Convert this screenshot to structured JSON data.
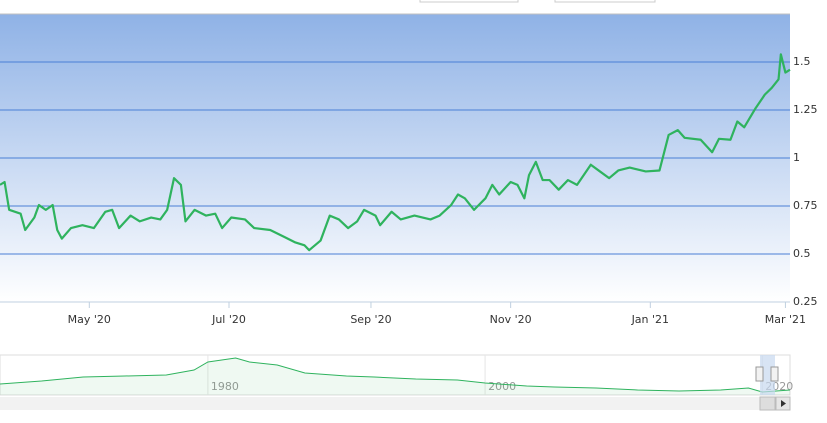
{
  "chart_data": {
    "type": "line",
    "color": "#2fb35e",
    "x": [
      "2020-03-23",
      "2020-03-25",
      "2020-03-27",
      "2020-04-01",
      "2020-04-03",
      "2020-04-07",
      "2020-04-09",
      "2020-04-12",
      "2020-04-15",
      "2020-04-17",
      "2020-04-19",
      "2020-04-23",
      "2020-04-28",
      "2020-05-03",
      "2020-05-08",
      "2020-05-11",
      "2020-05-14",
      "2020-05-19",
      "2020-05-23",
      "2020-05-28",
      "2020-06-01",
      "2020-06-04",
      "2020-06-07",
      "2020-06-10",
      "2020-06-12",
      "2020-06-16",
      "2020-06-21",
      "2020-06-25",
      "2020-06-28",
      "2020-07-02",
      "2020-07-08",
      "2020-07-12",
      "2020-07-19",
      "2020-07-25",
      "2020-07-30",
      "2020-08-03",
      "2020-08-05",
      "2020-08-10",
      "2020-08-14",
      "2020-08-18",
      "2020-08-22",
      "2020-08-26",
      "2020-08-29",
      "2020-09-03",
      "2020-09-05",
      "2020-09-10",
      "2020-09-14",
      "2020-09-20",
      "2020-09-27",
      "2020-10-01",
      "2020-10-06",
      "2020-10-09",
      "2020-10-12",
      "2020-10-16",
      "2020-10-21",
      "2020-10-24",
      "2020-10-27",
      "2020-11-01",
      "2020-11-04",
      "2020-11-07",
      "2020-11-09",
      "2020-11-12",
      "2020-11-15",
      "2020-11-18",
      "2020-11-22",
      "2020-11-26",
      "2020-11-30",
      "2020-12-06",
      "2020-12-10",
      "2020-12-14",
      "2020-12-18",
      "2020-12-23",
      "2020-12-30",
      "2021-01-05",
      "2021-01-09",
      "2021-01-13",
      "2021-01-16",
      "2021-01-23",
      "2021-01-28",
      "2021-01-31",
      "2021-02-05",
      "2021-02-08",
      "2021-02-11",
      "2021-02-16",
      "2021-02-20",
      "2021-02-23",
      "2021-02-26",
      "2021-02-27",
      "2021-03-01",
      "2021-03-03"
    ],
    "values": [
      0.86,
      0.875,
      0.73,
      0.71,
      0.625,
      0.69,
      0.755,
      0.73,
      0.755,
      0.625,
      0.58,
      0.635,
      0.65,
      0.635,
      0.72,
      0.73,
      0.635,
      0.7,
      0.67,
      0.69,
      0.68,
      0.73,
      0.895,
      0.86,
      0.67,
      0.73,
      0.7,
      0.71,
      0.635,
      0.69,
      0.68,
      0.635,
      0.625,
      0.59,
      0.56,
      0.545,
      0.52,
      0.57,
      0.7,
      0.68,
      0.635,
      0.67,
      0.73,
      0.7,
      0.65,
      0.72,
      0.68,
      0.7,
      0.68,
      0.7,
      0.755,
      0.81,
      0.79,
      0.73,
      0.79,
      0.86,
      0.81,
      0.875,
      0.86,
      0.79,
      0.91,
      0.98,
      0.885,
      0.885,
      0.835,
      0.885,
      0.86,
      0.965,
      0.93,
      0.895,
      0.935,
      0.95,
      0.93,
      0.935,
      1.12,
      1.145,
      1.105,
      1.095,
      1.03,
      1.1,
      1.095,
      1.19,
      1.16,
      1.26,
      1.33,
      1.365,
      1.41,
      1.54,
      1.445,
      1.46
    ],
    "xlim": [
      "2020-03-23",
      "2021-03-03"
    ],
    "xticks": [
      {
        "value": "2020-05-01",
        "label": "May '20"
      },
      {
        "value": "2020-07-01",
        "label": "Jul '20"
      },
      {
        "value": "2020-09-01",
        "label": "Sep '20"
      },
      {
        "value": "2020-11-01",
        "label": "Nov '20"
      },
      {
        "value": "2021-01-01",
        "label": "Jan '21"
      },
      {
        "value": "2021-03-01",
        "label": "Mar '21"
      }
    ],
    "ylim": [
      0.25,
      1.75
    ],
    "yticks": [
      0.25,
      0.5,
      0.75,
      1,
      1.25,
      1.5
    ],
    "grid": true,
    "navigator": {
      "color": "#2fb35e",
      "x": [
        1965,
        1968,
        1971,
        1974,
        1977,
        1979,
        1980,
        1982,
        1983,
        1985,
        1987,
        1990,
        1992,
        1995,
        1998,
        2000,
        2003,
        2005,
        2008,
        2011,
        2014,
        2017,
        2019,
        2020,
        2022
      ],
      "values": [
        1.1,
        1.4,
        1.8,
        1.9,
        2.0,
        2.5,
        3.3,
        3.7,
        3.3,
        3.0,
        2.2,
        1.9,
        1.8,
        1.6,
        1.5,
        1.2,
        0.9,
        0.8,
        0.7,
        0.5,
        0.4,
        0.5,
        0.7,
        0.3,
        0.5
      ],
      "xlim": [
        1965,
        2022
      ],
      "ylim": [
        0,
        4
      ],
      "xticks": [
        1980,
        2000,
        2020
      ]
    }
  }
}
